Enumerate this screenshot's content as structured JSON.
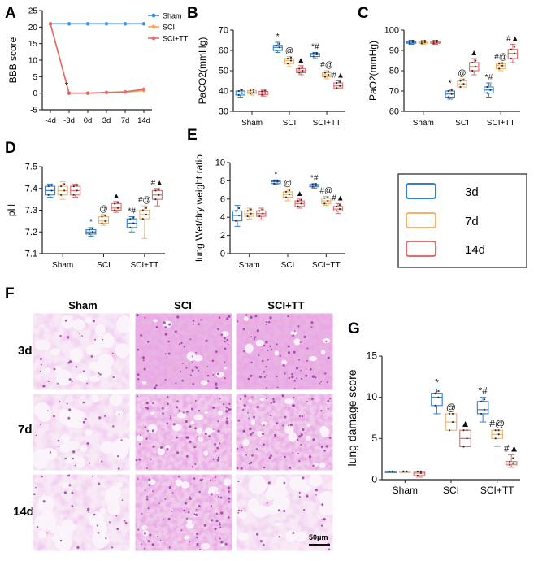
{
  "colors": {
    "d3": "#2E7FD6",
    "d7": "#F2B46A",
    "d14": "#E46C6C",
    "sham_line": "#3B8EE8",
    "sci_line": "#F2A65A",
    "sci_tt_line": "#E46C6C",
    "axis": "#222222",
    "tissue": "#C958C8"
  },
  "panel_letters": {
    "A": "A",
    "B": "B",
    "C": "C",
    "D": "D",
    "E": "E",
    "F": "F",
    "G": "G"
  },
  "legend_main": {
    "items": [
      "3d",
      "7d",
      "14d"
    ]
  },
  "histology": {
    "col_headers": [
      "Sham",
      "SCI",
      "SCI+TT"
    ],
    "row_headers": [
      "3d",
      "7d",
      "14d"
    ],
    "scalebar_label": "50μm"
  },
  "chart_data": [
    {
      "id": "A",
      "type": "line",
      "title": "",
      "ylabel": "BBB score",
      "xlabel": "",
      "categories": [
        "-4d",
        "-3d",
        "0d",
        "3d",
        "7d",
        "14d"
      ],
      "ylim": [
        -5,
        25
      ],
      "yticks": [
        -5,
        0,
        5,
        10,
        15,
        20,
        25
      ],
      "series": [
        {
          "name": "Sham",
          "values": [
            21,
            21,
            21,
            21,
            21,
            21
          ]
        },
        {
          "name": "SCI",
          "values": [
            21,
            0,
            0,
            0.2,
            0.3,
            0.8
          ]
        },
        {
          "name": "SCI+TT",
          "values": [
            21,
            0,
            0,
            0.2,
            0.4,
            1.2
          ]
        }
      ],
      "annotations": [
        {
          "text": "*",
          "category": "-3d"
        }
      ]
    },
    {
      "id": "B",
      "type": "box",
      "ylabel": "PaCO2(mmHg)",
      "ylim": [
        30,
        70
      ],
      "yticks": [
        30,
        40,
        50,
        60,
        70
      ],
      "groups": [
        "Sham",
        "SCI",
        "SCI+TT"
      ],
      "series_names": [
        "3d",
        "7d",
        "14d"
      ],
      "boxes": [
        {
          "g": 0,
          "s": 0,
          "min": 37,
          "q1": 38,
          "med": 39,
          "q3": 40,
          "max": 41,
          "mark": ""
        },
        {
          "g": 0,
          "s": 1,
          "min": 38,
          "q1": 38.8,
          "med": 39.5,
          "q3": 40.3,
          "max": 41,
          "mark": ""
        },
        {
          "g": 0,
          "s": 2,
          "min": 37.5,
          "q1": 38.2,
          "med": 39,
          "q3": 39.8,
          "max": 40.5,
          "mark": ""
        },
        {
          "g": 1,
          "s": 0,
          "min": 59,
          "q1": 60,
          "med": 61.5,
          "q3": 62.5,
          "max": 64,
          "mark": "*"
        },
        {
          "g": 1,
          "s": 1,
          "min": 52,
          "q1": 53.5,
          "med": 55,
          "q3": 56,
          "max": 57,
          "mark": "@"
        },
        {
          "g": 1,
          "s": 2,
          "min": 48,
          "q1": 49,
          "med": 50,
          "q3": 51,
          "max": 52.5,
          "mark": "▲"
        },
        {
          "g": 2,
          "s": 0,
          "min": 56,
          "q1": 57,
          "med": 58,
          "q3": 58.5,
          "max": 59,
          "mark": "*#"
        },
        {
          "g": 2,
          "s": 1,
          "min": 46,
          "q1": 47,
          "med": 48,
          "q3": 49,
          "max": 50,
          "mark": "#@"
        },
        {
          "g": 2,
          "s": 2,
          "min": 41,
          "q1": 41.5,
          "med": 42.5,
          "q3": 44,
          "max": 45,
          "mark": "#▲"
        }
      ]
    },
    {
      "id": "C",
      "type": "box",
      "ylabel": "PaO2(mmHg)",
      "ylim": [
        60,
        100
      ],
      "yticks": [
        60,
        70,
        80,
        90,
        100
      ],
      "groups": [
        "Sham",
        "SCI",
        "SCI+TT"
      ],
      "series_names": [
        "3d",
        "7d",
        "14d"
      ],
      "boxes": [
        {
          "g": 0,
          "s": 0,
          "min": 93,
          "q1": 93.5,
          "med": 94,
          "q3": 94.5,
          "max": 95,
          "mark": ""
        },
        {
          "g": 0,
          "s": 1,
          "min": 93,
          "q1": 93.5,
          "med": 94,
          "q3": 94.5,
          "max": 95,
          "mark": ""
        },
        {
          "g": 0,
          "s": 2,
          "min": 93,
          "q1": 93.5,
          "med": 94,
          "q3": 94.5,
          "max": 95,
          "mark": ""
        },
        {
          "g": 1,
          "s": 0,
          "min": 66,
          "q1": 67,
          "med": 68.5,
          "q3": 70,
          "max": 71,
          "mark": "*"
        },
        {
          "g": 1,
          "s": 1,
          "min": 71,
          "q1": 72,
          "med": 73.5,
          "q3": 75,
          "max": 76,
          "mark": "@"
        },
        {
          "g": 1,
          "s": 2,
          "min": 78,
          "q1": 80,
          "med": 82,
          "q3": 84,
          "max": 86,
          "mark": "▲"
        },
        {
          "g": 2,
          "s": 0,
          "min": 67,
          "q1": 69,
          "med": 70.5,
          "q3": 72,
          "max": 74,
          "mark": "*#"
        },
        {
          "g": 2,
          "s": 1,
          "min": 80,
          "q1": 81,
          "med": 82.5,
          "q3": 83.5,
          "max": 84,
          "mark": "#@"
        },
        {
          "g": 2,
          "s": 2,
          "min": 84,
          "q1": 86,
          "med": 88.5,
          "q3": 90.5,
          "max": 93,
          "mark": "#▲"
        }
      ]
    },
    {
      "id": "D",
      "type": "box",
      "ylabel": "pH",
      "ylim": [
        7.1,
        7.5
      ],
      "yticks": [
        7.1,
        7.2,
        7.3,
        7.4,
        7.5
      ],
      "groups": [
        "Sham",
        "SCI",
        "SCI+TT"
      ],
      "series_names": [
        "3d",
        "7d",
        "14d"
      ],
      "boxes": [
        {
          "g": 0,
          "s": 0,
          "min": 7.36,
          "q1": 7.37,
          "med": 7.39,
          "q3": 7.41,
          "max": 7.42,
          "mark": ""
        },
        {
          "g": 0,
          "s": 1,
          "min": 7.35,
          "q1": 7.37,
          "med": 7.39,
          "q3": 7.41,
          "max": 7.43,
          "mark": ""
        },
        {
          "g": 0,
          "s": 2,
          "min": 7.36,
          "q1": 7.37,
          "med": 7.39,
          "q3": 7.41,
          "max": 7.42,
          "mark": ""
        },
        {
          "g": 1,
          "s": 0,
          "min": 7.18,
          "q1": 7.19,
          "med": 7.2,
          "q3": 7.21,
          "max": 7.22,
          "mark": "*"
        },
        {
          "g": 1,
          "s": 1,
          "min": 7.23,
          "q1": 7.24,
          "med": 7.25,
          "q3": 7.27,
          "max": 7.28,
          "mark": "@"
        },
        {
          "g": 1,
          "s": 2,
          "min": 7.29,
          "q1": 7.3,
          "med": 7.31,
          "q3": 7.33,
          "max": 7.34,
          "mark": "▲"
        },
        {
          "g": 2,
          "s": 0,
          "min": 7.2,
          "q1": 7.22,
          "med": 7.24,
          "q3": 7.26,
          "max": 7.27,
          "mark": "*#"
        },
        {
          "g": 2,
          "s": 1,
          "min": 7.17,
          "q1": 7.26,
          "med": 7.28,
          "q3": 7.3,
          "max": 7.32,
          "mark": "#@"
        },
        {
          "g": 2,
          "s": 2,
          "min": 7.32,
          "q1": 7.35,
          "med": 7.37,
          "q3": 7.39,
          "max": 7.4,
          "mark": "#▲"
        }
      ]
    },
    {
      "id": "E",
      "type": "box",
      "ylabel": "lung Wet/dry weight ratio",
      "ylim": [
        0,
        10
      ],
      "yticks": [
        0,
        2,
        4,
        6,
        8,
        10
      ],
      "groups": [
        "Sham",
        "SCI",
        "SCI+TT"
      ],
      "series_names": [
        "3d",
        "7d",
        "14d"
      ],
      "boxes": [
        {
          "g": 0,
          "s": 0,
          "min": 3,
          "q1": 3.6,
          "med": 4.2,
          "q3": 4.7,
          "max": 5.3,
          "mark": ""
        },
        {
          "g": 0,
          "s": 1,
          "min": 3.8,
          "q1": 4.1,
          "med": 4.4,
          "q3": 4.7,
          "max": 5,
          "mark": ""
        },
        {
          "g": 0,
          "s": 2,
          "min": 3.7,
          "q1": 4.1,
          "med": 4.4,
          "q3": 4.7,
          "max": 5,
          "mark": ""
        },
        {
          "g": 1,
          "s": 0,
          "min": 7.6,
          "q1": 7.7,
          "med": 7.9,
          "q3": 8,
          "max": 8.1,
          "mark": "*"
        },
        {
          "g": 1,
          "s": 1,
          "min": 5.8,
          "q1": 6.2,
          "med": 6.5,
          "q3": 6.8,
          "max": 7.1,
          "mark": "@"
        },
        {
          "g": 1,
          "s": 2,
          "min": 5,
          "q1": 5.2,
          "med": 5.5,
          "q3": 5.8,
          "max": 6,
          "mark": "▲"
        },
        {
          "g": 2,
          "s": 0,
          "min": 7.2,
          "q1": 7.35,
          "med": 7.5,
          "q3": 7.6,
          "max": 7.7,
          "mark": "*#"
        },
        {
          "g": 2,
          "s": 1,
          "min": 5.3,
          "q1": 5.5,
          "med": 5.8,
          "q3": 6.1,
          "max": 6.3,
          "mark": "#@"
        },
        {
          "g": 2,
          "s": 2,
          "min": 4.4,
          "q1": 4.7,
          "med": 4.9,
          "q3": 5.2,
          "max": 5.5,
          "mark": "#▲"
        }
      ]
    },
    {
      "id": "G",
      "type": "box",
      "ylabel": "lung damage score",
      "ylim": [
        0,
        15
      ],
      "yticks": [
        0,
        5,
        10,
        15
      ],
      "groups": [
        "Sham",
        "SCI",
        "SCI+TT"
      ],
      "series_names": [
        "3d",
        "7d",
        "14d"
      ],
      "boxes": [
        {
          "g": 0,
          "s": 0,
          "min": 1,
          "q1": 1,
          "med": 1,
          "q3": 1,
          "max": 1,
          "mark": ""
        },
        {
          "g": 0,
          "s": 1,
          "min": 1,
          "q1": 1,
          "med": 1,
          "q3": 1,
          "max": 1,
          "mark": ""
        },
        {
          "g": 0,
          "s": 2,
          "min": 0.3,
          "q1": 0.5,
          "med": 0.8,
          "q3": 1,
          "max": 1,
          "mark": ""
        },
        {
          "g": 1,
          "s": 0,
          "min": 8,
          "q1": 9,
          "med": 10,
          "q3": 10.5,
          "max": 11,
          "mark": "*"
        },
        {
          "g": 1,
          "s": 1,
          "min": 6,
          "q1": 6,
          "med": 7,
          "q3": 8,
          "max": 8,
          "mark": "@"
        },
        {
          "g": 1,
          "s": 2,
          "min": 4,
          "q1": 4,
          "med": 5,
          "q3": 6,
          "max": 6,
          "mark": "▲"
        },
        {
          "g": 2,
          "s": 0,
          "min": 7,
          "q1": 8,
          "med": 8.5,
          "q3": 9.5,
          "max": 10,
          "mark": "*#"
        },
        {
          "g": 2,
          "s": 1,
          "min": 4,
          "q1": 5,
          "med": 5.5,
          "q3": 6,
          "max": 6,
          "mark": "#@"
        },
        {
          "g": 2,
          "s": 2,
          "min": 1.5,
          "q1": 1.8,
          "med": 2,
          "q3": 2.2,
          "max": 3,
          "mark": "#▲"
        }
      ]
    }
  ]
}
